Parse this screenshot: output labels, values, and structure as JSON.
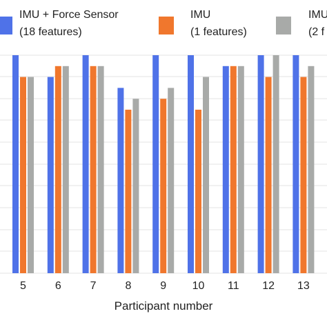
{
  "chart_data": {
    "type": "bar",
    "xlabel": "Participant number",
    "ylabel": "",
    "categories": [
      "5",
      "6",
      "7",
      "8",
      "9",
      "10",
      "11",
      "12",
      "13"
    ],
    "ylim": [
      0.0,
      1.0
    ],
    "grid": true,
    "legend_position": "top",
    "series": [
      {
        "name_line1": "IMU + Force Sensor",
        "name_line2": "(18 features)",
        "color": "#4f72e8",
        "values": [
          1.0,
          0.9,
          1.0,
          0.85,
          1.0,
          1.0,
          0.95,
          1.0,
          1.0
        ]
      },
      {
        "name_line1": "IMU",
        "name_line2": "(1 features)",
        "color": "#f0772d",
        "values": [
          0.9,
          0.95,
          0.95,
          0.75,
          0.8,
          0.75,
          0.95,
          0.9,
          0.9
        ]
      },
      {
        "name_line1": "IMU",
        "name_line2": "(2 f",
        "color": "#a8aaa8",
        "values": [
          0.9,
          0.95,
          0.95,
          0.8,
          0.85,
          0.9,
          0.95,
          1.0,
          0.95
        ]
      }
    ]
  }
}
